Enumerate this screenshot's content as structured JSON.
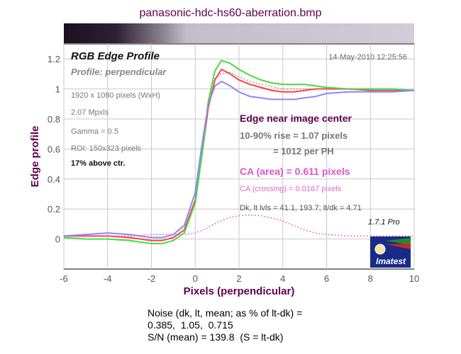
{
  "window_title": "panasonic-hdc-hs60-aberration.bmp",
  "chart_data": {
    "type": "line",
    "title": "RGB Edge Profile",
    "subtitle": "Profile: perpendicular",
    "timestamp": "14-May-2010 12:25:56",
    "xlabel": "Pixels (perpendicular)",
    "ylabel": "Edge profile",
    "xlim": [
      -6,
      10
    ],
    "ylim": [
      -0.2,
      1.3
    ],
    "x_ticks": [
      "-6",
      "-4",
      "-2",
      "0",
      "2",
      "4",
      "6",
      "8",
      "10"
    ],
    "y_ticks": [
      "0",
      "0.2",
      "0.4",
      "0.6",
      "0.8",
      "1",
      "1.2"
    ],
    "grid": true,
    "info_lines": [
      "1920 x 1080 pixels (WxH)",
      "2.07 Mpxls",
      "Gamma = 0.5",
      "ROI: 150x323 pixels"
    ],
    "location_note": "17% above ctr.",
    "annotations": {
      "heading": "Edge near image center",
      "rise_line1": "10-90% rise = 1.07 pixels",
      "rise_line2": "= 1012 per PH",
      "ca_area": "CA (area) = 0.611 pixels",
      "ca_crossing": "CA (crossing) = 0.0167 pixels",
      "levels": "Dk, lt lvls = 41.1, 193.7;   lt/dk = 4.71",
      "version": "1.7.1  Pro"
    },
    "logo_text": "Imatest",
    "series": [
      {
        "color": "#ff4040",
        "x": [
          -6,
          -5,
          -4,
          -3,
          -2,
          -1.5,
          -1,
          -0.5,
          0,
          0.3,
          0.6,
          0.9,
          1.2,
          1.6,
          2,
          2.5,
          3,
          3.5,
          4,
          4.5,
          5,
          5.5,
          6,
          7,
          8,
          9,
          10
        ],
        "y": [
          0.02,
          0.02,
          0.02,
          0.01,
          -0.01,
          -0.01,
          0.01,
          0.06,
          0.26,
          0.55,
          0.88,
          1.06,
          1.13,
          1.1,
          1.06,
          1.03,
          1.01,
          0.99,
          0.98,
          0.98,
          0.99,
          1.0,
          1.0,
          1.0,
          0.99,
          0.99,
          0.99
        ]
      },
      {
        "color": "#44dd44",
        "x": [
          -6,
          -5,
          -4,
          -3,
          -2,
          -1.5,
          -1,
          -0.5,
          0,
          0.3,
          0.6,
          0.9,
          1.2,
          1.6,
          2,
          2.5,
          3,
          3.5,
          4,
          4.5,
          5,
          5.5,
          6,
          7,
          8,
          9,
          10
        ],
        "y": [
          0.01,
          0.0,
          0.0,
          -0.01,
          -0.03,
          -0.03,
          -0.01,
          0.04,
          0.24,
          0.55,
          0.92,
          1.12,
          1.19,
          1.17,
          1.13,
          1.09,
          1.06,
          1.04,
          1.03,
          1.03,
          1.03,
          1.02,
          1.01,
          1.0,
          1.0,
          1.0,
          0.99
        ]
      },
      {
        "color": "#8888ff",
        "x": [
          -6,
          -5,
          -4,
          -3,
          -2,
          -1.5,
          -1,
          -0.5,
          0,
          0.3,
          0.6,
          0.9,
          1.2,
          1.6,
          2,
          2.5,
          3,
          3.5,
          4,
          4.5,
          5,
          5.5,
          6,
          7,
          8,
          9,
          10
        ],
        "y": [
          0.02,
          0.03,
          0.04,
          0.03,
          0.01,
          0.01,
          0.03,
          0.09,
          0.31,
          0.62,
          0.9,
          1.02,
          1.05,
          1.02,
          0.98,
          0.95,
          0.94,
          0.93,
          0.93,
          0.93,
          0.94,
          0.95,
          0.97,
          0.98,
          0.98,
          0.98,
          0.99
        ]
      },
      {
        "color": "#dd44dd",
        "dashed": true,
        "x": [
          -6,
          -5,
          -4,
          -3,
          -2,
          -1,
          -0.5,
          0,
          0.5,
          1,
          1.5,
          2,
          2.5,
          3,
          3.5,
          4,
          4.5,
          5,
          5.5,
          6,
          6.5,
          7,
          8,
          9,
          10
        ],
        "y": [
          0.02,
          0.02,
          0.02,
          0.02,
          0.03,
          0.03,
          0.03,
          0.04,
          0.07,
          0.11,
          0.14,
          0.155,
          0.16,
          0.155,
          0.14,
          0.12,
          0.09,
          0.06,
          0.04,
          0.03,
          0.025,
          0.02,
          0.02,
          0.02,
          0.02
        ]
      },
      {
        "color": "#cc6666",
        "dashed": true,
        "x": [
          0.5,
          0.9,
          1.2,
          1.6,
          2,
          2.5,
          3,
          4,
          5,
          6,
          7,
          8,
          10
        ],
        "y": [
          0.8,
          1.07,
          1.1,
          1.11,
          1.08,
          1.05,
          1.03,
          1.0,
          1.0,
          1.0,
          1.0,
          0.99,
          0.99
        ]
      }
    ]
  },
  "footer": {
    "line1": "Noise (dk, lt, mean; as % of lt-dk) =",
    "line2": "0.385,  1.05,  0.715",
    "line3": "S/N (mean) = 139.8  (S = lt-dk)"
  }
}
